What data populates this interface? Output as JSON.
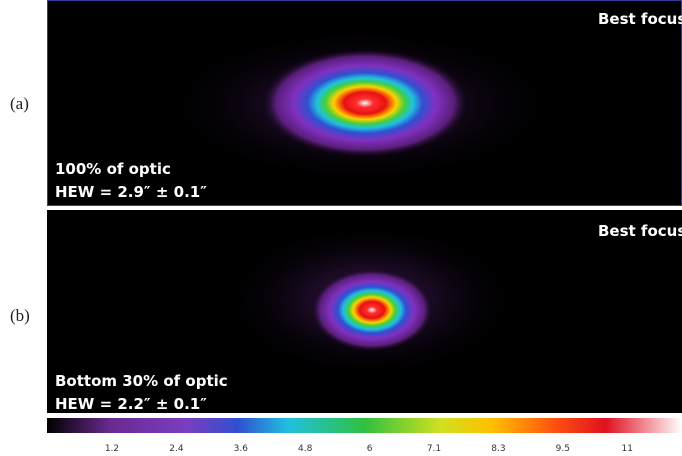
{
  "panels": [
    {
      "label": "(a)",
      "corner_text": "Best focus",
      "description": "100% of optic",
      "hew": "HEW = 2.9″ ± 0.1″"
    },
    {
      "label": "(b)",
      "corner_text": "Best focus",
      "description": "Bottom 30% of optic",
      "hew": "HEW = 2.2″ ± 0.1″"
    }
  ],
  "colorbar": {
    "ticks": [
      1.2,
      2.4,
      3.6,
      4.8,
      6,
      7.1,
      8.3,
      9.5,
      11
    ]
  }
}
